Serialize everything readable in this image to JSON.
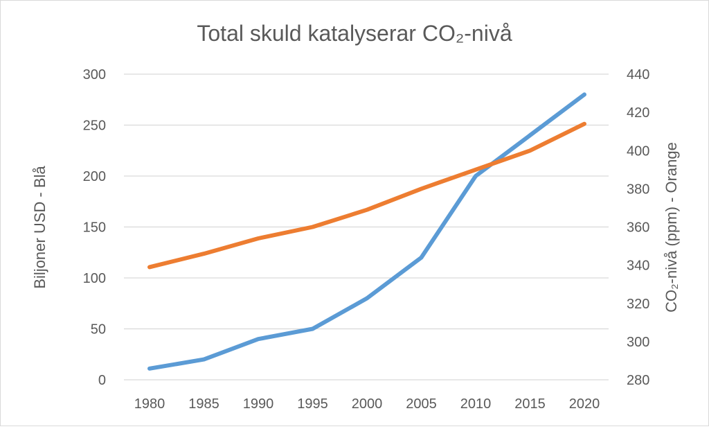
{
  "chart_data": {
    "type": "line",
    "title": "Total skuld katalyserar CO₂-nivå",
    "x": [
      1980,
      1985,
      1990,
      1995,
      2000,
      2005,
      2010,
      2015,
      2020
    ],
    "x_tick_labels": [
      "1980",
      "1985",
      "1990",
      "1995",
      "2000",
      "2005",
      "2010",
      "2015",
      "2020"
    ],
    "y_left": {
      "label": "Biljoner USD - Blå",
      "range": [
        0,
        300
      ],
      "ticks": [
        "0",
        "50",
        "100",
        "150",
        "200",
        "250",
        "300"
      ]
    },
    "y_right": {
      "label": "CO₂-nivå (ppm) - Orange",
      "range": [
        280,
        440
      ],
      "ticks": [
        "280",
        "300",
        "320",
        "340",
        "360",
        "380",
        "400",
        "420",
        "440"
      ]
    },
    "grid": true,
    "series": [
      {
        "axis": "left",
        "color": "#5b9bd5",
        "values": [
          11,
          20,
          40,
          50,
          80,
          120,
          200,
          240,
          280
        ]
      },
      {
        "axis": "right",
        "color": "#ed7d31",
        "values": [
          339,
          346,
          354,
          360,
          369,
          380,
          390,
          400,
          414
        ]
      }
    ]
  }
}
